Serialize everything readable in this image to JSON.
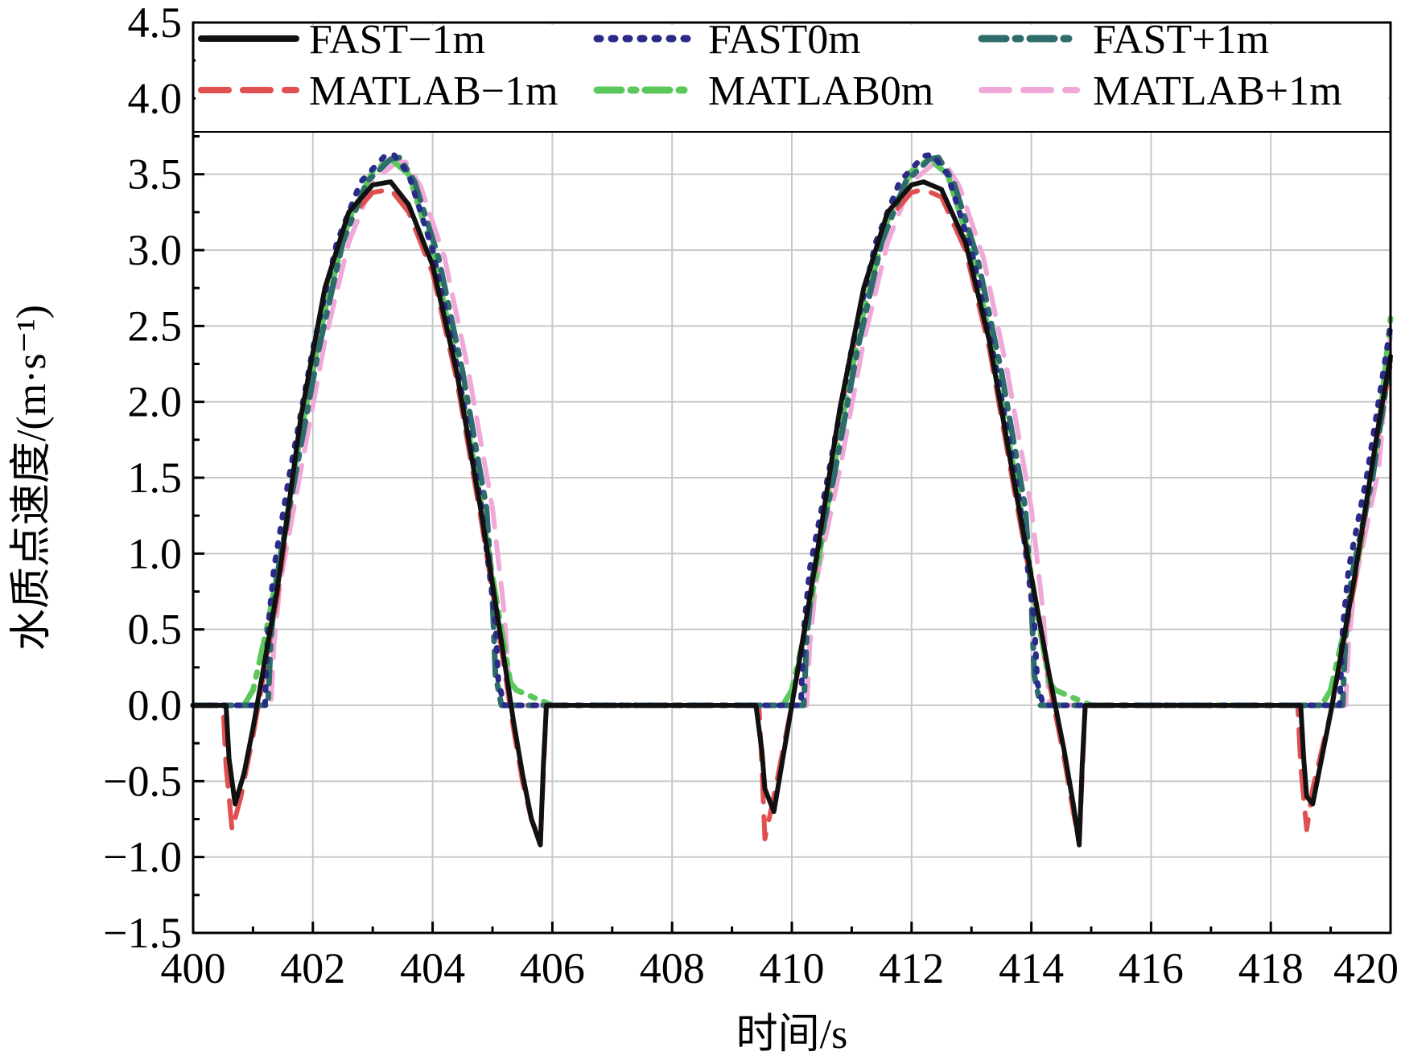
{
  "chart_data": {
    "type": "line",
    "title": "",
    "xlabel": "时间/s",
    "ylabel": "水质点速度/(m·s⁻¹)",
    "xlim": [
      400,
      420
    ],
    "ylim": [
      -1.5,
      4.5
    ],
    "x_ticks": [
      "400",
      "402",
      "404",
      "406",
      "408",
      "410",
      "412",
      "414",
      "416",
      "418",
      "420"
    ],
    "y_ticks": [
      "−1.5",
      "−1.0",
      "−0.5",
      "0.0",
      "0.5",
      "1.0",
      "1.5",
      "2.0",
      "2.5",
      "3.0",
      "3.5",
      "4.0",
      "4.5"
    ],
    "grid": true,
    "legend_position": "top",
    "series": [
      {
        "name": "FAST−1m",
        "color": "#111111",
        "dash": "solid",
        "x": [
          400,
          400.55,
          400.6,
          400.7,
          400.85,
          401.0,
          401.4,
          401.8,
          402.2,
          402.6,
          403.0,
          403.3,
          403.6,
          404.0,
          404.4,
          404.8,
          405.1,
          405.35,
          405.5,
          405.65,
          405.8,
          405.85,
          405.9,
          406.3,
          408,
          409.4,
          409.5,
          409.55,
          409.7,
          409.85,
          410.0,
          410.4,
          410.8,
          411.2,
          411.6,
          412.0,
          412.2,
          412.5,
          412.9,
          413.3,
          413.7,
          414.0,
          414.3,
          414.55,
          414.7,
          414.8,
          414.85,
          414.9,
          415.3,
          417,
          418.5,
          418.55,
          418.6,
          418.7,
          418.85,
          419.0,
          419.4,
          419.8,
          420
        ],
        "y": [
          0,
          0,
          -0.35,
          -0.65,
          -0.45,
          -0.15,
          0.75,
          1.9,
          2.75,
          3.25,
          3.43,
          3.45,
          3.3,
          2.9,
          2.2,
          1.3,
          0.55,
          -0.1,
          -0.45,
          -0.75,
          -0.92,
          -0.4,
          0,
          0,
          0,
          0,
          -0.3,
          -0.55,
          -0.7,
          -0.35,
          0.0,
          0.95,
          1.95,
          2.75,
          3.25,
          3.43,
          3.45,
          3.4,
          3.05,
          2.4,
          1.5,
          0.85,
          0.2,
          -0.3,
          -0.65,
          -0.92,
          -0.4,
          0,
          0,
          0,
          0,
          -0.35,
          -0.6,
          -0.65,
          -0.35,
          -0.05,
          0.85,
          1.85,
          2.3
        ]
      },
      {
        "name": "FAST0m",
        "color": "#2a2a8a",
        "dash": "dot",
        "x": [
          400,
          401.2,
          401.25,
          401.35,
          401.6,
          402.0,
          402.4,
          402.8,
          403.2,
          403.35,
          403.6,
          404.0,
          404.4,
          404.8,
          405.05,
          405.1,
          405.2,
          406,
          408,
          410.15,
          410.2,
          410.3,
          410.6,
          411.0,
          411.4,
          411.8,
          412.2,
          412.35,
          412.6,
          413.0,
          413.4,
          413.8,
          414.05,
          414.1,
          414.2,
          415,
          417,
          419.15,
          419.2,
          419.3,
          419.6,
          420
        ],
        "y": [
          0,
          0,
          0.5,
          0.9,
          1.5,
          2.35,
          3.05,
          3.45,
          3.62,
          3.63,
          3.5,
          3.0,
          2.25,
          1.35,
          0.55,
          0.15,
          0,
          0,
          0,
          0,
          0.5,
          0.9,
          1.5,
          2.35,
          3.05,
          3.45,
          3.62,
          3.63,
          3.5,
          3.0,
          2.25,
          1.35,
          0.55,
          0.15,
          0,
          0,
          0,
          0,
          0.5,
          0.9,
          1.5,
          2.5
        ]
      },
      {
        "name": "FAST+1m",
        "color": "#2e6b6b",
        "dash": "dashdot",
        "x": [
          400,
          401.25,
          401.3,
          401.4,
          401.7,
          402.1,
          402.5,
          402.9,
          403.3,
          403.45,
          403.7,
          404.1,
          404.5,
          404.9,
          405.0,
          405.05,
          405.15,
          406,
          408,
          410.2,
          410.25,
          410.35,
          410.7,
          411.1,
          411.5,
          411.9,
          412.3,
          412.45,
          412.7,
          413.1,
          413.5,
          413.9,
          414.0,
          414.05,
          414.15,
          415,
          417,
          419.2,
          419.25,
          419.35,
          419.7,
          420
        ],
        "y": [
          0,
          0,
          0.45,
          0.85,
          1.5,
          2.35,
          3.05,
          3.45,
          3.6,
          3.61,
          3.45,
          2.95,
          2.2,
          1.3,
          0.7,
          0.2,
          0,
          0,
          0,
          0,
          0.45,
          0.85,
          1.5,
          2.35,
          3.05,
          3.45,
          3.6,
          3.61,
          3.45,
          2.95,
          2.2,
          1.3,
          0.7,
          0.2,
          0,
          0,
          0,
          0,
          0.45,
          0.85,
          1.5,
          2.3
        ]
      },
      {
        "name": "MATLAB−1m",
        "color": "#e05050",
        "dash": "dash",
        "x": [
          400,
          400.5,
          400.55,
          400.65,
          400.8,
          401.0,
          401.4,
          401.8,
          402.2,
          402.6,
          403.0,
          403.3,
          403.6,
          404.0,
          404.4,
          404.8,
          405.1,
          405.35,
          405.5,
          405.65,
          405.8,
          405.9,
          406.3,
          408,
          409.45,
          409.5,
          409.55,
          409.7,
          409.85,
          410.0,
          410.4,
          410.8,
          411.2,
          411.6,
          412.0,
          412.2,
          412.5,
          412.9,
          413.3,
          413.7,
          414.0,
          414.3,
          414.55,
          414.7,
          414.8,
          414.9,
          415.3,
          417,
          418.45,
          418.5,
          418.6,
          418.7,
          418.85,
          419.0,
          419.4,
          419.8,
          420
        ],
        "y": [
          0,
          0,
          -0.4,
          -0.82,
          -0.6,
          -0.2,
          0.7,
          1.85,
          2.7,
          3.2,
          3.38,
          3.4,
          3.25,
          2.85,
          2.15,
          1.25,
          0.5,
          -0.15,
          -0.5,
          -0.75,
          -0.9,
          0,
          0,
          0,
          0,
          -0.4,
          -0.88,
          -0.6,
          -0.3,
          0.0,
          0.9,
          1.9,
          2.7,
          3.2,
          3.38,
          3.4,
          3.35,
          3.0,
          2.35,
          1.45,
          0.8,
          0.15,
          -0.35,
          -0.7,
          -0.9,
          0,
          0,
          0,
          0,
          -0.4,
          -0.82,
          -0.55,
          -0.3,
          -0.05,
          0.8,
          1.8,
          2.25
        ]
      },
      {
        "name": "MATLAB0m",
        "color": "#5cc85c",
        "dash": "dashdot",
        "x": [
          400,
          400.85,
          401.0,
          401.2,
          401.4,
          401.8,
          402.2,
          402.6,
          403.0,
          403.3,
          403.6,
          404.0,
          404.4,
          404.8,
          405.0,
          405.15,
          405.3,
          405.4,
          405.7,
          406.0,
          408,
          409.85,
          410.0,
          410.2,
          410.4,
          410.8,
          411.2,
          411.6,
          412.0,
          412.3,
          412.6,
          413.0,
          413.4,
          413.8,
          414.0,
          414.15,
          414.3,
          414.4,
          414.7,
          415.0,
          417,
          418.85,
          419.0,
          419.2,
          419.4,
          419.8,
          420
        ],
        "y": [
          0,
          0,
          0.1,
          0.45,
          0.85,
          1.8,
          2.6,
          3.2,
          3.52,
          3.6,
          3.5,
          3.0,
          2.25,
          1.35,
          0.85,
          0.5,
          0.15,
          0.1,
          0.05,
          0,
          0,
          0,
          0.1,
          0.45,
          0.85,
          1.8,
          2.6,
          3.2,
          3.52,
          3.6,
          3.5,
          3.0,
          2.25,
          1.35,
          0.85,
          0.5,
          0.15,
          0.1,
          0.05,
          0,
          0,
          0,
          0.1,
          0.45,
          0.85,
          1.8,
          2.55
        ]
      },
      {
        "name": "MATLAB+1m",
        "color": "#f0a8d8",
        "dash": "dash",
        "x": [
          400,
          401.3,
          401.35,
          401.45,
          401.8,
          402.2,
          402.6,
          403.0,
          403.4,
          403.55,
          403.8,
          404.2,
          404.6,
          405.0,
          405.2,
          405.3,
          406,
          408,
          410.25,
          410.3,
          410.4,
          410.8,
          411.2,
          411.6,
          412.0,
          412.4,
          412.55,
          412.8,
          413.2,
          413.6,
          414.0,
          414.2,
          414.3,
          415,
          417,
          419.25,
          419.3,
          419.4,
          419.8,
          420
        ],
        "y": [
          0,
          0,
          0.4,
          0.8,
          1.55,
          2.4,
          3.05,
          3.45,
          3.58,
          3.58,
          3.42,
          2.95,
          2.2,
          1.3,
          0.6,
          0,
          0,
          0,
          0,
          0.4,
          0.8,
          1.55,
          2.4,
          3.05,
          3.45,
          3.58,
          3.58,
          3.42,
          2.95,
          2.2,
          1.3,
          0.6,
          0,
          0,
          0,
          0,
          0.4,
          0.8,
          1.55,
          2.45
        ]
      }
    ]
  }
}
